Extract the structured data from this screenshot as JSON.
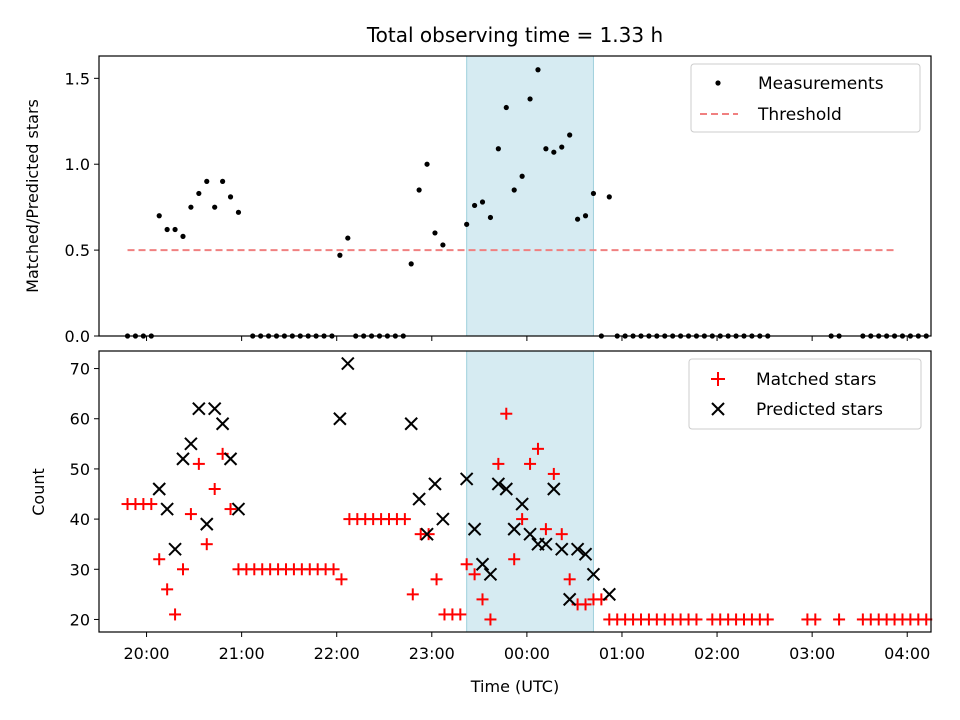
{
  "chart_data": [
    {
      "type": "scatter",
      "title": "Total observing time = 1.33 h",
      "ylabel": "Matched/Predicted stars",
      "xlim": [
        "19:30",
        "04:15"
      ],
      "ylim": [
        0,
        1.63
      ],
      "yticks": [
        "0.0",
        "0.5",
        "1.0",
        "1.5"
      ],
      "highlight_span": [
        "23:22",
        "00:42"
      ],
      "legend_position": "top-right",
      "series": [
        {
          "name": "Measurements",
          "marker": "dot",
          "color": "#000000",
          "points": [
            [
              "19:48",
              0
            ],
            [
              "19:53",
              0
            ],
            [
              "19:58",
              0
            ],
            [
              "20:03",
              0
            ],
            [
              "20:08",
              0.7
            ],
            [
              "20:13",
              0.62
            ],
            [
              "20:18",
              0.62
            ],
            [
              "20:23",
              0.58
            ],
            [
              "20:28",
              0.75
            ],
            [
              "20:33",
              0.83
            ],
            [
              "20:38",
              0.9
            ],
            [
              "20:43",
              0.75
            ],
            [
              "20:48",
              0.9
            ],
            [
              "20:53",
              0.81
            ],
            [
              "20:58",
              0.72
            ],
            [
              "21:07",
              0
            ],
            [
              "21:12",
              0
            ],
            [
              "21:17",
              0
            ],
            [
              "21:22",
              0
            ],
            [
              "21:27",
              0
            ],
            [
              "21:32",
              0
            ],
            [
              "21:37",
              0
            ],
            [
              "21:42",
              0
            ],
            [
              "21:47",
              0
            ],
            [
              "21:52",
              0
            ],
            [
              "21:57",
              0
            ],
            [
              "22:02",
              0.47
            ],
            [
              "22:07",
              0.57
            ],
            [
              "22:12",
              0
            ],
            [
              "22:17",
              0
            ],
            [
              "22:22",
              0
            ],
            [
              "22:27",
              0
            ],
            [
              "22:32",
              0
            ],
            [
              "22:37",
              0
            ],
            [
              "22:42",
              0
            ],
            [
              "22:47",
              0.42
            ],
            [
              "22:52",
              0.85
            ],
            [
              "22:57",
              1.0
            ],
            [
              "23:02",
              0.6
            ],
            [
              "23:07",
              0.53
            ],
            [
              "23:22",
              0.65
            ],
            [
              "23:27",
              0.76
            ],
            [
              "23:32",
              0.78
            ],
            [
              "23:37",
              0.69
            ],
            [
              "23:42",
              1.09
            ],
            [
              "23:47",
              1.33
            ],
            [
              "23:52",
              0.85
            ],
            [
              "23:57",
              0.93
            ],
            [
              "00:02",
              1.38
            ],
            [
              "00:07",
              1.55
            ],
            [
              "00:12",
              1.09
            ],
            [
              "00:17",
              1.07
            ],
            [
              "00:22",
              1.1
            ],
            [
              "00:27",
              1.17
            ],
            [
              "00:32",
              0.68
            ],
            [
              "00:37",
              0.7
            ],
            [
              "00:42",
              0.83
            ],
            [
              "00:47",
              0
            ],
            [
              "00:52",
              0.81
            ],
            [
              "00:57",
              0
            ],
            [
              "01:02",
              0
            ],
            [
              "01:07",
              0
            ],
            [
              "01:12",
              0
            ],
            [
              "01:17",
              0
            ],
            [
              "01:22",
              0
            ],
            [
              "01:27",
              0
            ],
            [
              "01:32",
              0
            ],
            [
              "01:37",
              0
            ],
            [
              "01:42",
              0
            ],
            [
              "01:47",
              0
            ],
            [
              "01:52",
              0
            ],
            [
              "01:57",
              0
            ],
            [
              "02:02",
              0
            ],
            [
              "02:07",
              0
            ],
            [
              "02:12",
              0
            ],
            [
              "02:17",
              0
            ],
            [
              "02:22",
              0
            ],
            [
              "02:27",
              0
            ],
            [
              "02:32",
              0
            ],
            [
              "03:12",
              0
            ],
            [
              "03:17",
              0
            ],
            [
              "03:32",
              0
            ],
            [
              "03:37",
              0
            ],
            [
              "03:42",
              0
            ],
            [
              "03:47",
              0
            ],
            [
              "03:52",
              0
            ],
            [
              "03:57",
              0
            ],
            [
              "04:02",
              0
            ],
            [
              "04:07",
              0
            ],
            [
              "04:12",
              0
            ]
          ]
        },
        {
          "name": "Threshold",
          "style": "dashed-line",
          "color": "#f08080",
          "points": [
            [
              "19:48",
              0.5
            ],
            [
              "03:52",
              0.5
            ]
          ]
        }
      ]
    },
    {
      "type": "scatter",
      "xlabel": "Time (UTC)",
      "ylabel": "Count",
      "xlim": [
        "19:30",
        "04:15"
      ],
      "ylim": [
        17.5,
        73.5
      ],
      "yticks": [
        "20",
        "30",
        "40",
        "50",
        "60",
        "70"
      ],
      "xticks": [
        "20:00",
        "21:00",
        "22:00",
        "23:00",
        "00:00",
        "01:00",
        "02:00",
        "03:00",
        "04:00"
      ],
      "highlight_span": [
        "23:22",
        "00:42"
      ],
      "legend_position": "top-right",
      "series": [
        {
          "name": "Matched stars",
          "marker": "plus",
          "color": "#ff0000",
          "points": [
            [
              "19:48",
              43
            ],
            [
              "19:53",
              43
            ],
            [
              "19:58",
              43
            ],
            [
              "20:03",
              43
            ],
            [
              "20:08",
              32
            ],
            [
              "20:13",
              26
            ],
            [
              "20:18",
              21
            ],
            [
              "20:23",
              30
            ],
            [
              "20:28",
              41
            ],
            [
              "20:33",
              51
            ],
            [
              "20:38",
              35
            ],
            [
              "20:43",
              46
            ],
            [
              "20:48",
              53
            ],
            [
              "20:53",
              42
            ],
            [
              "20:58",
              30
            ],
            [
              "21:03",
              30
            ],
            [
              "21:08",
              30
            ],
            [
              "21:13",
              30
            ],
            [
              "21:18",
              30
            ],
            [
              "21:23",
              30
            ],
            [
              "21:28",
              30
            ],
            [
              "21:33",
              30
            ],
            [
              "21:38",
              30
            ],
            [
              "21:43",
              30
            ],
            [
              "21:48",
              30
            ],
            [
              "21:53",
              30
            ],
            [
              "21:58",
              30
            ],
            [
              "22:03",
              28
            ],
            [
              "22:08",
              40
            ],
            [
              "22:13",
              40
            ],
            [
              "22:18",
              40
            ],
            [
              "22:23",
              40
            ],
            [
              "22:28",
              40
            ],
            [
              "22:33",
              40
            ],
            [
              "22:38",
              40
            ],
            [
              "22:43",
              40
            ],
            [
              "22:48",
              25
            ],
            [
              "22:53",
              37
            ],
            [
              "22:58",
              37
            ],
            [
              "23:03",
              28
            ],
            [
              "23:08",
              21
            ],
            [
              "23:13",
              21
            ],
            [
              "23:18",
              21
            ],
            [
              "23:22",
              31
            ],
            [
              "23:27",
              29
            ],
            [
              "23:32",
              24
            ],
            [
              "23:37",
              20
            ],
            [
              "23:42",
              51
            ],
            [
              "23:47",
              61
            ],
            [
              "23:52",
              32
            ],
            [
              "23:57",
              40
            ],
            [
              "00:02",
              51
            ],
            [
              "00:07",
              54
            ],
            [
              "00:12",
              38
            ],
            [
              "00:17",
              49
            ],
            [
              "00:22",
              37
            ],
            [
              "00:27",
              28
            ],
            [
              "00:32",
              23
            ],
            [
              "00:37",
              23
            ],
            [
              "00:42",
              24
            ],
            [
              "00:47",
              24
            ],
            [
              "00:52",
              20
            ],
            [
              "00:57",
              20
            ],
            [
              "01:02",
              20
            ],
            [
              "01:07",
              20
            ],
            [
              "01:12",
              20
            ],
            [
              "01:17",
              20
            ],
            [
              "01:22",
              20
            ],
            [
              "01:27",
              20
            ],
            [
              "01:32",
              20
            ],
            [
              "01:37",
              20
            ],
            [
              "01:42",
              20
            ],
            [
              "01:47",
              20
            ],
            [
              "01:57",
              20
            ],
            [
              "02:02",
              20
            ],
            [
              "02:07",
              20
            ],
            [
              "02:12",
              20
            ],
            [
              "02:17",
              20
            ],
            [
              "02:22",
              20
            ],
            [
              "02:27",
              20
            ],
            [
              "02:32",
              20
            ],
            [
              "02:57",
              20
            ],
            [
              "03:02",
              20
            ],
            [
              "03:17",
              20
            ],
            [
              "03:32",
              20
            ],
            [
              "03:37",
              20
            ],
            [
              "03:42",
              20
            ],
            [
              "03:47",
              20
            ],
            [
              "03:52",
              20
            ],
            [
              "03:57",
              20
            ],
            [
              "04:02",
              20
            ],
            [
              "04:07",
              20
            ],
            [
              "04:12",
              20
            ]
          ]
        },
        {
          "name": "Predicted stars",
          "marker": "x",
          "color": "#000000",
          "points": [
            [
              "20:08",
              46
            ],
            [
              "20:13",
              42
            ],
            [
              "20:18",
              34
            ],
            [
              "20:23",
              52
            ],
            [
              "20:28",
              55
            ],
            [
              "20:33",
              62
            ],
            [
              "20:38",
              39
            ],
            [
              "20:43",
              62
            ],
            [
              "20:48",
              59
            ],
            [
              "20:53",
              52
            ],
            [
              "20:58",
              42
            ],
            [
              "22:02",
              60
            ],
            [
              "22:07",
              71
            ],
            [
              "22:47",
              59
            ],
            [
              "22:52",
              44
            ],
            [
              "22:57",
              37
            ],
            [
              "23:02",
              47
            ],
            [
              "23:07",
              40
            ],
            [
              "23:22",
              48
            ],
            [
              "23:27",
              38
            ],
            [
              "23:32",
              31
            ],
            [
              "23:37",
              29
            ],
            [
              "23:42",
              47
            ],
            [
              "23:47",
              46
            ],
            [
              "23:52",
              38
            ],
            [
              "23:57",
              43
            ],
            [
              "00:02",
              37
            ],
            [
              "00:07",
              35
            ],
            [
              "00:12",
              35
            ],
            [
              "00:17",
              46
            ],
            [
              "00:22",
              34
            ],
            [
              "00:27",
              24
            ],
            [
              "00:32",
              34
            ],
            [
              "00:37",
              33
            ],
            [
              "00:42",
              29
            ],
            [
              "00:52",
              25
            ]
          ]
        }
      ]
    }
  ]
}
